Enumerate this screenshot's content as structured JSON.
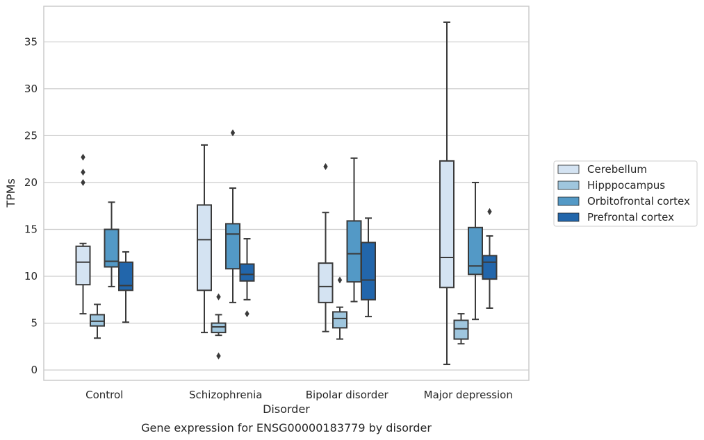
{
  "chart_data": {
    "type": "boxplot",
    "title": "Gene expression for ENSG00000183779 by disorder",
    "xlabel": "Disorder",
    "ylabel": "TPMs",
    "ylim": [
      -1.1,
      38.8
    ],
    "yticks": [
      0,
      5,
      10,
      15,
      20,
      25,
      30,
      35
    ],
    "grid": "horizontal",
    "legend_position": "right",
    "categories": [
      "Control",
      "Schizophrenia",
      "Bipolar disorder",
      "Major depression"
    ],
    "series": [
      {
        "name": "Cerebellum",
        "color": "#d4e3f2",
        "boxes": [
          {
            "whislo": 6.0,
            "q1": 9.1,
            "med": 11.5,
            "q3": 13.2,
            "whishi": 13.5,
            "fliers": [
              20.0,
              21.1,
              22.7
            ]
          },
          {
            "whislo": 4.0,
            "q1": 8.5,
            "med": 13.9,
            "q3": 17.6,
            "whishi": 24.0,
            "fliers": []
          },
          {
            "whislo": 4.1,
            "q1": 7.2,
            "med": 8.9,
            "q3": 11.4,
            "whishi": 16.8,
            "fliers": [
              21.7
            ]
          },
          {
            "whislo": 0.6,
            "q1": 8.8,
            "med": 12.0,
            "q3": 22.3,
            "whishi": 37.1,
            "fliers": []
          }
        ]
      },
      {
        "name": "Hipppocampus",
        "color": "#9fc6de",
        "boxes": [
          {
            "whislo": 3.4,
            "q1": 4.7,
            "med": 5.2,
            "q3": 5.9,
            "whishi": 7.0,
            "fliers": []
          },
          {
            "whislo": 3.7,
            "q1": 4.0,
            "med": 4.6,
            "q3": 5.0,
            "whishi": 5.9,
            "fliers": [
              1.5,
              7.8
            ]
          },
          {
            "whislo": 3.3,
            "q1": 4.5,
            "med": 5.5,
            "q3": 6.2,
            "whishi": 6.7,
            "fliers": [
              9.6
            ]
          },
          {
            "whislo": 2.8,
            "q1": 3.3,
            "med": 4.4,
            "q3": 5.3,
            "whishi": 6.0,
            "fliers": []
          }
        ]
      },
      {
        "name": "Orbitofrontal cortex",
        "color": "#5399c6",
        "boxes": [
          {
            "whislo": 8.9,
            "q1": 11.0,
            "med": 11.6,
            "q3": 15.0,
            "whishi": 17.9,
            "fliers": []
          },
          {
            "whislo": 7.2,
            "q1": 10.8,
            "med": 14.5,
            "q3": 15.6,
            "whishi": 19.4,
            "fliers": [
              25.3
            ]
          },
          {
            "whislo": 7.3,
            "q1": 9.4,
            "med": 12.4,
            "q3": 15.9,
            "whishi": 22.6,
            "fliers": []
          },
          {
            "whislo": 5.4,
            "q1": 10.2,
            "med": 11.1,
            "q3": 15.2,
            "whishi": 20.0,
            "fliers": []
          }
        ]
      },
      {
        "name": "Prefrontal cortex",
        "color": "#2266ab",
        "boxes": [
          {
            "whislo": 5.1,
            "q1": 8.5,
            "med": 9.0,
            "q3": 11.5,
            "whishi": 12.6,
            "fliers": []
          },
          {
            "whislo": 7.5,
            "q1": 9.5,
            "med": 10.2,
            "q3": 11.3,
            "whishi": 14.0,
            "fliers": [
              6.0
            ]
          },
          {
            "whislo": 5.7,
            "q1": 7.5,
            "med": 9.6,
            "q3": 13.6,
            "whishi": 16.2,
            "fliers": []
          },
          {
            "whislo": 6.6,
            "q1": 9.7,
            "med": 11.5,
            "q3": 12.2,
            "whishi": 14.3,
            "fliers": [
              16.9
            ]
          }
        ]
      }
    ]
  }
}
